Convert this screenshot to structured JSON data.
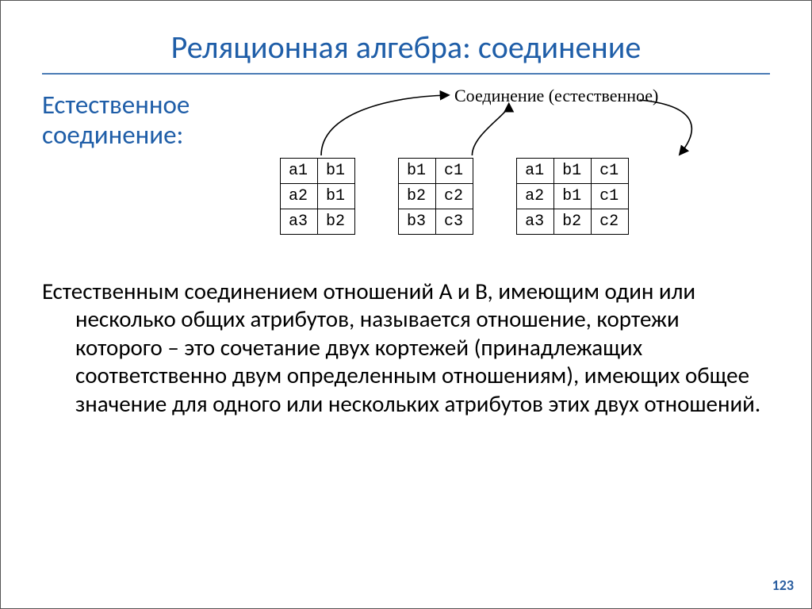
{
  "title": "Реляционная алгебра: соединение",
  "title_color": "#1f5ea8",
  "rule_color": "#4a7bb5",
  "subheading": "Естественное соединение:",
  "subheading_color": "#1f5ea8",
  "diagram": {
    "label": "Соединение (естественное)",
    "arrow_color": "#000000",
    "tables": {
      "a": {
        "cols": 2,
        "rows": [
          [
            "a1",
            "b1"
          ],
          [
            "a2",
            "b1"
          ],
          [
            "a3",
            "b2"
          ]
        ]
      },
      "b": {
        "cols": 2,
        "rows": [
          [
            "b1",
            "c1"
          ],
          [
            "b2",
            "c2"
          ],
          [
            "b3",
            "c3"
          ]
        ]
      },
      "c": {
        "cols": 3,
        "rows": [
          [
            "a1",
            "b1",
            "c1"
          ],
          [
            "a2",
            "b1",
            "c1"
          ],
          [
            "a3",
            "b2",
            "c2"
          ]
        ]
      }
    },
    "table_font": "Courier New",
    "cell_fontsize": 20,
    "border_color": "#000000"
  },
  "body": "Естественным соединением отношений A и B, имеющим один или несколько общих атрибутов, называется отношение, кортежи которого – это сочетание двух кортежей (принадлежащих соответственно двум определенным отношениям), имеющих общее значение для одного или нескольких атрибутов этих двух отношений.",
  "body_fontsize": 29,
  "page_number": "123",
  "page_number_color": "#2a5ea0",
  "background_color": "#ffffff"
}
